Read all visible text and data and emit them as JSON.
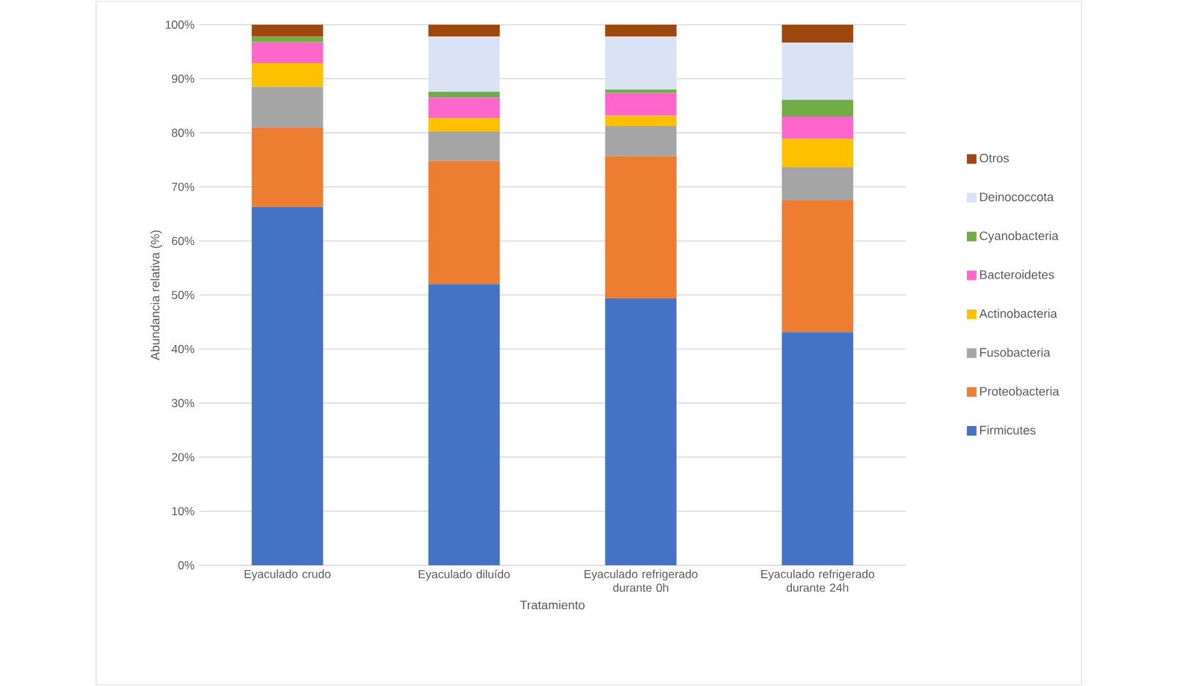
{
  "chart_data": {
    "type": "bar",
    "stacked": true,
    "xlabel": "Tratamiento",
    "ylabel": "Abundancia relativa (%)",
    "categories": [
      "Eyaculado crudo",
      "Eyaculado diluído",
      "Eyaculado refrigerado durante 0h",
      "Eyaculado refrigerado durante 24h"
    ],
    "ylim": [
      0,
      100
    ],
    "yticks": [
      {
        "value": 0,
        "label": "0%"
      },
      {
        "value": 10,
        "label": "10%"
      },
      {
        "value": 20,
        "label": "20%"
      },
      {
        "value": 30,
        "label": "30%"
      },
      {
        "value": 40,
        "label": "40%"
      },
      {
        "value": 50,
        "label": "50%"
      },
      {
        "value": 60,
        "label": "60%"
      },
      {
        "value": 70,
        "label": "70%"
      },
      {
        "value": 80,
        "label": "80%"
      },
      {
        "value": 90,
        "label": "90%"
      },
      {
        "value": 100,
        "label": "100%"
      }
    ],
    "grid": "y",
    "legend": "right",
    "series": [
      {
        "name": "Firmicutes",
        "color": "#4472c4",
        "values": [
          66.3,
          52.0,
          49.4,
          43.1
        ]
      },
      {
        "name": "Proteobacteria",
        "color": "#ed7d31",
        "values": [
          14.7,
          22.8,
          26.3,
          24.5
        ]
      },
      {
        "name": "Fusobacteria",
        "color": "#a5a5a5",
        "values": [
          7.5,
          5.5,
          5.6,
          6.0
        ]
      },
      {
        "name": "Actinobacteria",
        "color": "#ffc000",
        "values": [
          4.4,
          2.4,
          1.9,
          5.3
        ]
      },
      {
        "name": "Bacteroidetes",
        "color": "#ff66cc",
        "values": [
          3.9,
          3.8,
          4.2,
          4.1
        ]
      },
      {
        "name": "Cyanobacteria",
        "color": "#70ad47",
        "values": [
          1.0,
          1.1,
          0.6,
          3.1
        ]
      },
      {
        "name": "Deinococcota",
        "color": "#dae3f3",
        "values": [
          null,
          10.2,
          9.8,
          10.6
        ]
      },
      {
        "name": "Otros",
        "color": "#9e480e",
        "values": [
          2.2,
          2.2,
          2.2,
          3.3
        ]
      }
    ]
  }
}
